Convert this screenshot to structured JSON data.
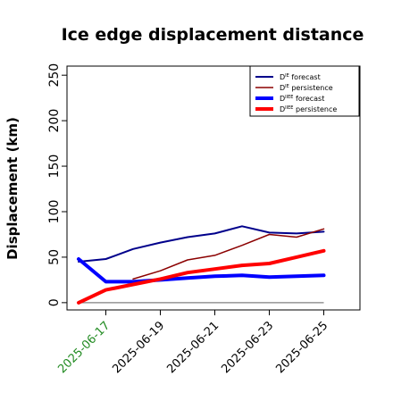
{
  "chart_data": {
    "type": "line",
    "title": "Ice edge displacement distance",
    "xlabel": "",
    "ylabel": "Displacement (km)",
    "ylim": [
      -8,
      260
    ],
    "yticks": [
      0,
      50,
      100,
      150,
      200,
      250
    ],
    "x": [
      "2025-06-16",
      "2025-06-17",
      "2025-06-18",
      "2025-06-19",
      "2025-06-20",
      "2025-06-21",
      "2025-06-22",
      "2025-06-23",
      "2025-06-24",
      "2025-06-25"
    ],
    "xticks": [
      {
        "label": "2025-06-17",
        "color": "#228b22"
      },
      {
        "label": "2025-06-19",
        "color": "#000000"
      },
      {
        "label": "2025-06-21",
        "color": "#000000"
      },
      {
        "label": "2025-06-23",
        "color": "#000000"
      },
      {
        "label": "2025-06-25",
        "color": "#000000"
      }
    ],
    "series": [
      {
        "name": "D^IE forecast",
        "label_main": "D",
        "label_sup": "IE",
        "label_rest": " forecast",
        "color": "#00008b",
        "width": 2,
        "values": [
          45,
          48,
          59,
          66,
          72,
          76,
          84,
          77,
          76,
          78
        ]
      },
      {
        "name": "D^IE persistence",
        "label_main": "D",
        "label_sup": "IE",
        "label_rest": " persistence",
        "color": "#8b0000",
        "width": 1.5,
        "values": [
          null,
          null,
          26,
          35,
          47,
          52,
          63,
          75,
          72,
          81
        ]
      },
      {
        "name": "D^IIEE forecast",
        "label_main": "D",
        "label_sup": "IIEE",
        "label_rest": " forecast",
        "color": "#0000ff",
        "width": 4,
        "values": [
          48,
          23,
          23,
          25,
          27,
          29,
          30,
          28,
          29,
          30
        ]
      },
      {
        "name": "D^IIEE persistence",
        "label_main": "D",
        "label_sup": "IIEE",
        "label_rest": " persistence",
        "color": "#ff0000",
        "width": 4,
        "values": [
          0,
          14,
          20,
          26,
          33,
          37,
          41,
          43,
          50,
          57
        ]
      }
    ],
    "zero_line": {
      "value": 0,
      "color": "#808080"
    },
    "grid": false,
    "legend_position": "top-right"
  }
}
